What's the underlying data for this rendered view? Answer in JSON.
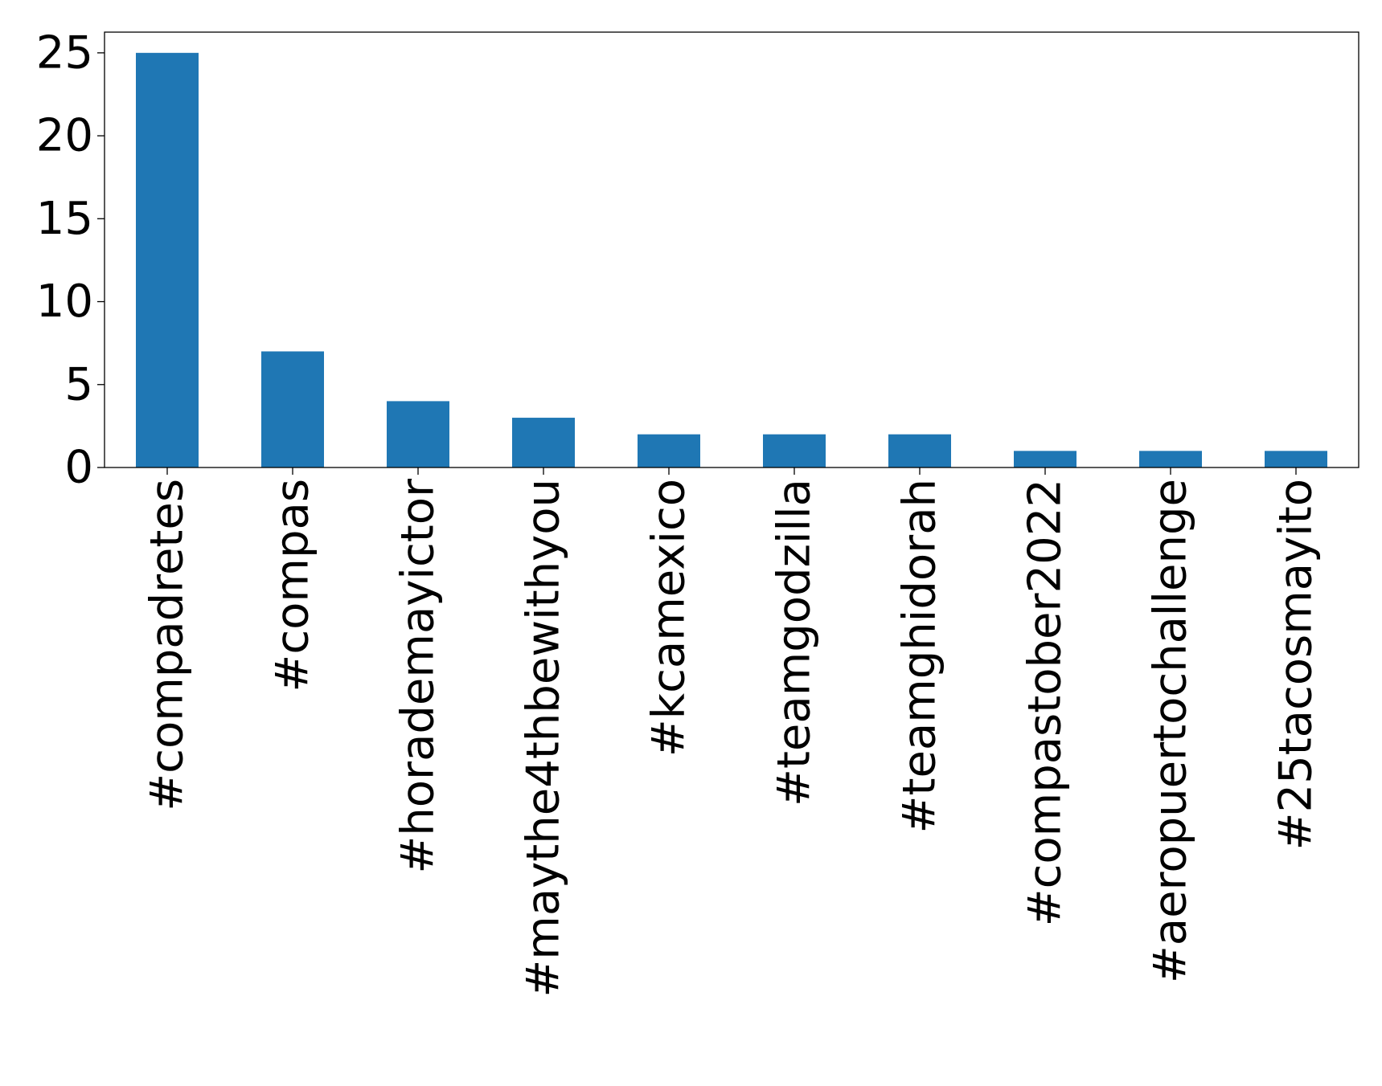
{
  "chart_data": {
    "type": "bar",
    "title": "",
    "xlabel": "",
    "ylabel": "",
    "categories": [
      "#compadretes",
      "#compas",
      "#horademayictor",
      "#maythe4thbewithyou",
      "#kcamexico",
      "#teamgodzilla",
      "#teamghidorah",
      "#compastober2022",
      "#aeropuertochallenge",
      "#25tacosmayito"
    ],
    "values": [
      25,
      7,
      4,
      3,
      2,
      2,
      2,
      1,
      1,
      1
    ],
    "ylim": [
      0,
      26.25
    ],
    "yticks": [
      0,
      5,
      10,
      15,
      20,
      25
    ],
    "grid": false,
    "legend": "none",
    "bar_color": "#1f77b4"
  }
}
